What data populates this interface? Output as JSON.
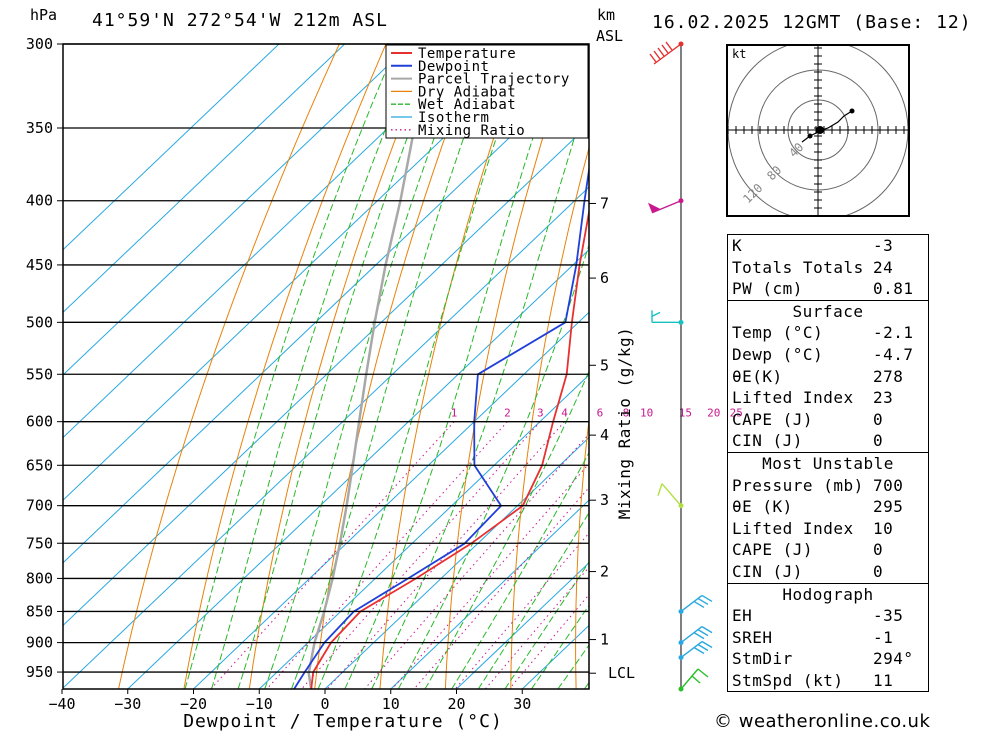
{
  "header": {
    "location": "41°59'N  272°54'W  212m  ASL",
    "datetime": "16.02.2025  12GMT  (Base: 12)",
    "hpa_unit": "hPa",
    "km_unit": "km",
    "asl_unit": "ASL"
  },
  "chart_data": {
    "type": "line",
    "title": "",
    "xlabel": "Dewpoint / Temperature (°C)",
    "ylabel": "hPa",
    "y2label": "Mixing Ratio (g/kg)",
    "xlim": [
      -40,
      40
    ],
    "ylim": [
      300,
      980
    ],
    "y_log_scale": true,
    "skew": true,
    "pressure_ticks": [
      300,
      350,
      400,
      450,
      500,
      550,
      600,
      650,
      700,
      750,
      800,
      850,
      900,
      950
    ],
    "temperature_ticks": [
      -40,
      -30,
      -20,
      -10,
      0,
      10,
      20,
      30
    ],
    "height_ticks_km": [
      {
        "label": "7",
        "p": 402
      },
      {
        "label": "6",
        "p": 461
      },
      {
        "label": "5",
        "p": 541
      },
      {
        "label": "4",
        "p": 615
      },
      {
        "label": "3",
        "p": 693
      },
      {
        "label": "2",
        "p": 790
      },
      {
        "label": "1",
        "p": 895
      },
      {
        "label": "LCL",
        "p": 952
      }
    ],
    "mixing_ratio_labels": [
      "1",
      "2",
      "3",
      "4",
      "6",
      "8",
      "10",
      "15",
      "20",
      "25"
    ],
    "legend": [
      "Temperature",
      "Dewpoint",
      "Parcel Trajectory",
      "Dry Adiabat",
      "Wet Adiabat",
      "Isotherm",
      "Mixing Ratio"
    ],
    "legend_position": "top-right",
    "colors": {
      "temperature": "#e83030",
      "dewpoint": "#2040d8",
      "parcel": "#a8a8a8",
      "dry_adiabat": "#e8820a",
      "wet_adiabat": "#28b828",
      "isotherm": "#28a8e0",
      "mixing_ratio": "#c81890"
    },
    "series": [
      {
        "name": "Temperature",
        "points": [
          [
            980,
            -2.1
          ],
          [
            950,
            -4.5
          ],
          [
            900,
            -6.5
          ],
          [
            850,
            -7.0
          ],
          [
            800,
            -3.8
          ],
          [
            750,
            -1.0
          ],
          [
            700,
            0.8
          ],
          [
            650,
            -2.7
          ],
          [
            600,
            -8.0
          ],
          [
            550,
            -13.5
          ],
          [
            500,
            -21.0
          ],
          [
            450,
            -29.0
          ],
          [
            400,
            -37.5
          ],
          [
            350,
            -47.5
          ],
          [
            300,
            -57.5
          ]
        ]
      },
      {
        "name": "Dewpoint",
        "points": [
          [
            980,
            -4.7
          ],
          [
            950,
            -5.8
          ],
          [
            900,
            -7.5
          ],
          [
            850,
            -8.0
          ],
          [
            800,
            -5.0
          ],
          [
            750,
            -2.0
          ],
          [
            700,
            -2.5
          ],
          [
            650,
            -13.0
          ],
          [
            600,
            -20.0
          ],
          [
            550,
            -27.0
          ],
          [
            500,
            -22.0
          ],
          [
            450,
            -29.5
          ],
          [
            400,
            -38.5
          ],
          [
            350,
            -48.5
          ],
          [
            300,
            -59.0
          ]
        ]
      },
      {
        "name": "Parcel Trajectory",
        "points": [
          [
            980,
            -2.1
          ],
          [
            952,
            -5.0
          ],
          [
            900,
            -9.0
          ],
          [
            850,
            -12.5
          ],
          [
            800,
            -16.5
          ],
          [
            750,
            -21.0
          ],
          [
            700,
            -26.0
          ],
          [
            650,
            -31.5
          ],
          [
            600,
            -37.5
          ],
          [
            550,
            -44.0
          ],
          [
            500,
            -51.0
          ],
          [
            450,
            -58.5
          ],
          [
            400,
            -66.5
          ],
          [
            350,
            -76.0
          ],
          [
            300,
            -87.0
          ]
        ]
      }
    ],
    "hodograph": {
      "rings_kt": [
        "40",
        "80",
        "120"
      ],
      "unit_label": "kt"
    },
    "wind_barbs": [
      {
        "p": 300,
        "color": "#e83030"
      },
      {
        "p": 400,
        "color": "#c81890"
      },
      {
        "p": 500,
        "color": "#18c0c0"
      },
      {
        "p": 700,
        "color": "#b0e040"
      },
      {
        "p": 850,
        "color": "#28a8e0"
      },
      {
        "p": 900,
        "color": "#28a8e0"
      },
      {
        "p": 925,
        "color": "#28a8e0"
      },
      {
        "p": 980,
        "color": "#28c028"
      }
    ]
  },
  "stats": {
    "indices": [
      {
        "key": "K",
        "value": "-3"
      },
      {
        "key": "Totals Totals",
        "value": "24"
      },
      {
        "key": "PW (cm)",
        "value": "0.81"
      }
    ],
    "surface": {
      "title": "Surface",
      "rows": [
        {
          "key": "Temp (°C)",
          "value": "-2.1"
        },
        {
          "key": "Dewp (°C)",
          "value": "-4.7"
        },
        {
          "key": "θE(K)",
          "value": "278"
        },
        {
          "key": "Lifted Index",
          "value": "23"
        },
        {
          "key": "CAPE (J)",
          "value": "0"
        },
        {
          "key": "CIN (J)",
          "value": "0"
        }
      ]
    },
    "most_unstable": {
      "title": "Most Unstable",
      "rows": [
        {
          "key": "Pressure (mb)",
          "value": "700"
        },
        {
          "key": "θE (K)",
          "value": "295"
        },
        {
          "key": "Lifted Index",
          "value": "10"
        },
        {
          "key": "CAPE (J)",
          "value": "0"
        },
        {
          "key": "CIN (J)",
          "value": "0"
        }
      ]
    },
    "hodograph": {
      "title": "Hodograph",
      "rows": [
        {
          "key": "EH",
          "value": "-35"
        },
        {
          "key": "SREH",
          "value": "-1"
        },
        {
          "key": "StmDir",
          "value": "294°"
        },
        {
          "key": "StmSpd (kt)",
          "value": "11"
        }
      ]
    }
  },
  "footer": {
    "credit": "© weatheronline.co.uk"
  }
}
